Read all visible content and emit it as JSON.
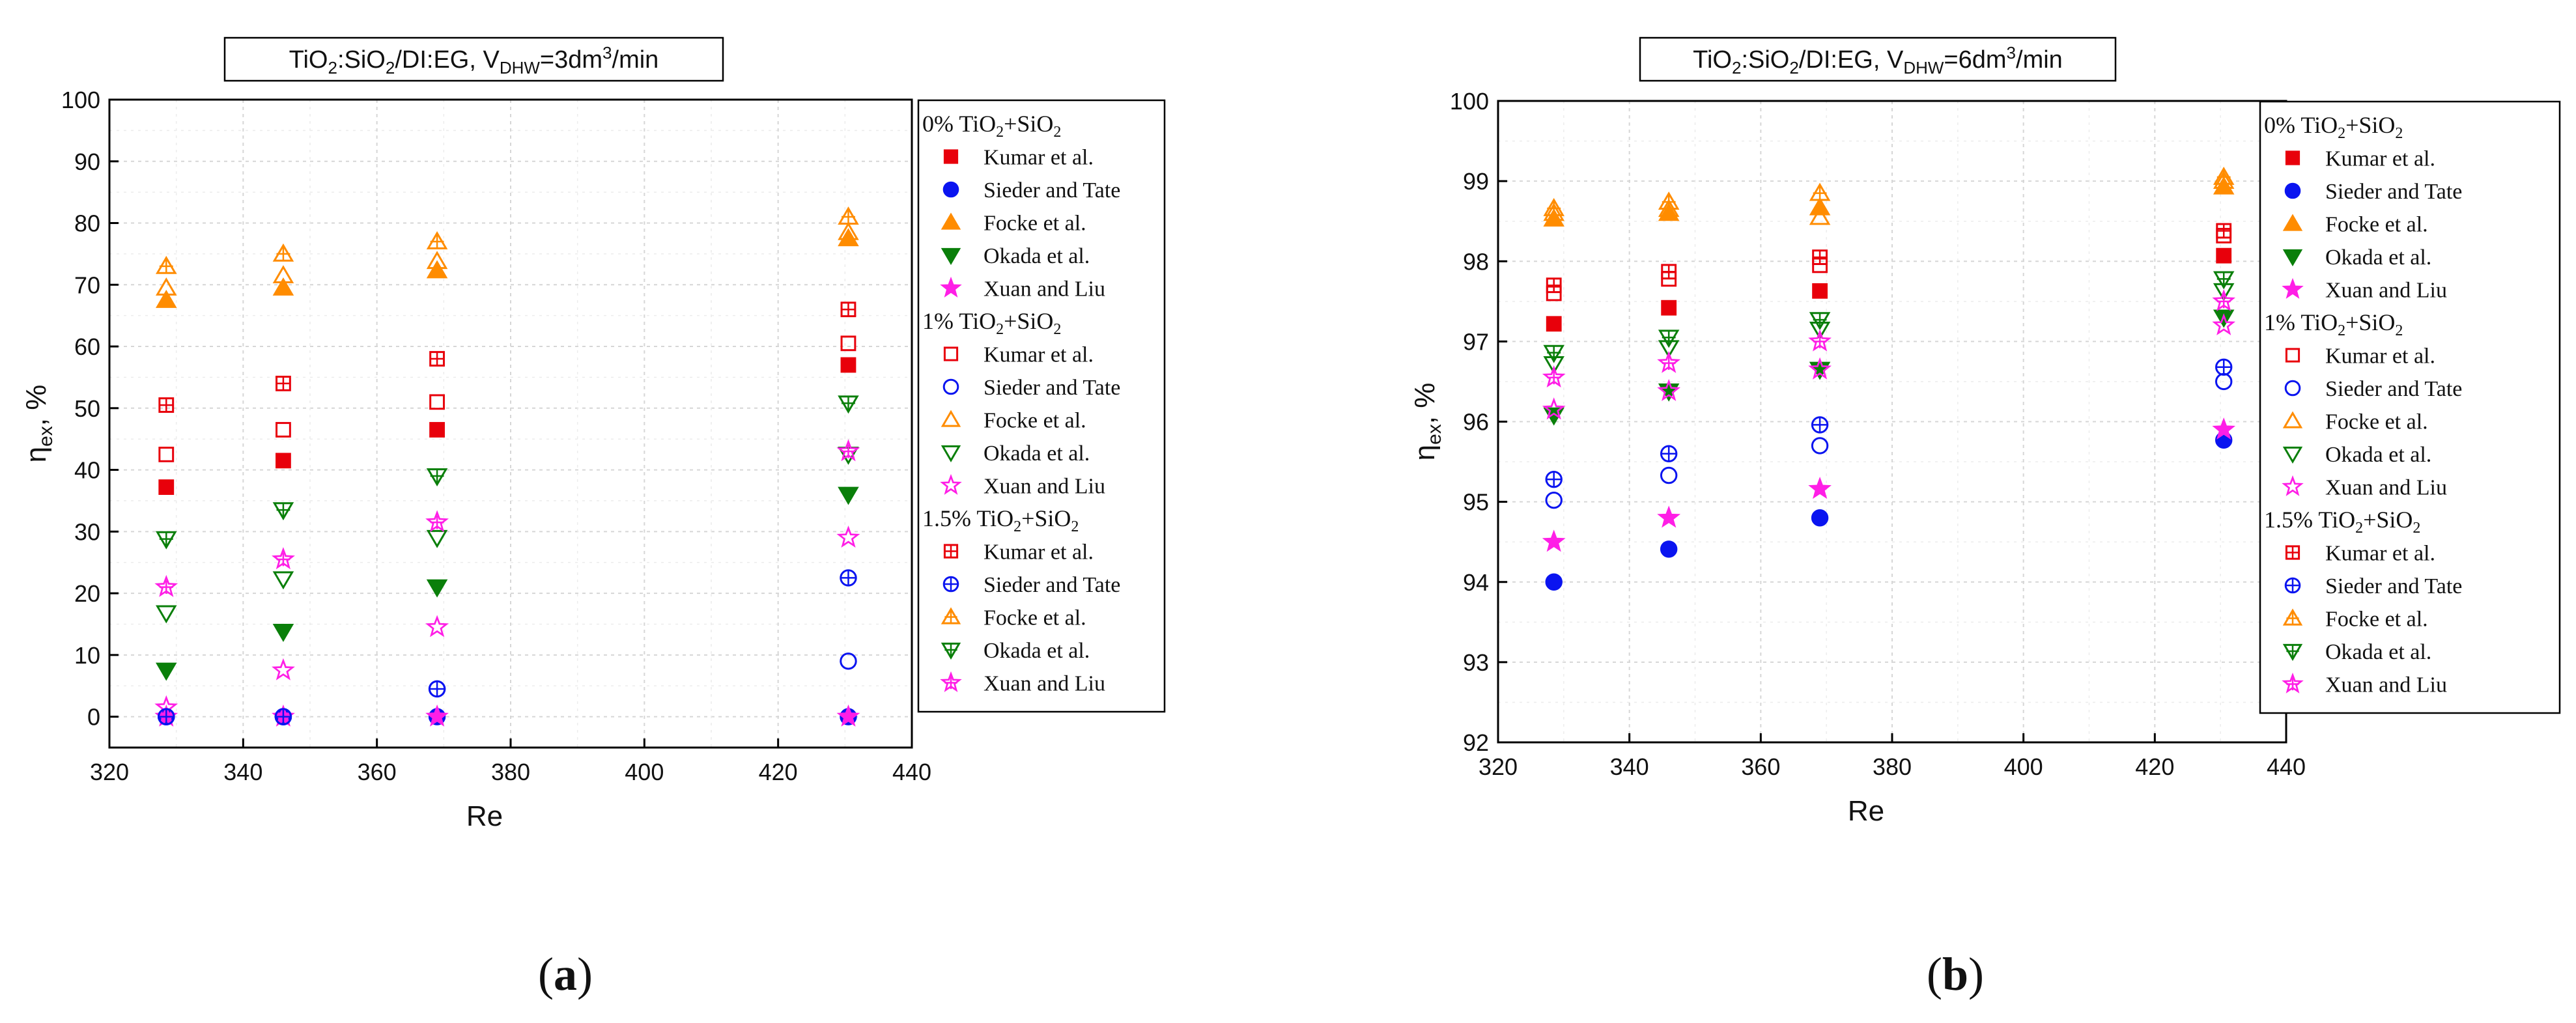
{
  "panels": [
    {
      "id": "a",
      "label_open": "(",
      "label_letter": "a",
      "label_close": ")"
    },
    {
      "id": "b",
      "label_open": "(",
      "label_letter": "b",
      "label_close": ")"
    }
  ],
  "colors": {
    "Kumar": "#e8000b",
    "Sieder": "#0a14f0",
    "Focke": "#ff8c00",
    "Okada": "#0a7f0a",
    "Xuan": "#ff1ee6"
  },
  "chart_data": [
    {
      "type": "scatter",
      "title_prefix": "TiO",
      "title_mid1": ":SiO",
      "title_mid2": "/DI:EG, ",
      "title_v": "V",
      "title_sub": "DHW",
      "title_eq": "=3dm",
      "title_sup": "3",
      "title_end": "/min",
      "xlabel": "Re",
      "ylabel_main": "η",
      "ylabel_sub": "ex",
      "ylabel_end": ", %",
      "xlim": [
        320,
        440
      ],
      "ylim": [
        -5,
        100
      ],
      "xticks": [
        320,
        340,
        360,
        380,
        400,
        420,
        440
      ],
      "yticks": [
        0,
        10,
        20,
        30,
        40,
        50,
        60,
        70,
        80,
        90,
        100
      ],
      "grid": true,
      "legend_position": "right",
      "x": [
        328.5,
        346,
        369,
        430.5
      ],
      "legend_groups": [
        {
          "heading_pre": "0% TiO",
          "heading_mid": "+SiO",
          "fill": "filled",
          "marker": "0%"
        },
        {
          "heading_pre": "1% TiO",
          "heading_mid": "+SiO",
          "fill": "open",
          "marker": "1%"
        },
        {
          "heading_pre": "1.5% TiO",
          "heading_mid": "+SiO",
          "fill": "cross",
          "marker": "1.5%"
        }
      ],
      "series": [
        {
          "group": "0%",
          "name": "Kumar et al.",
          "color_key": "Kumar",
          "shape": "square",
          "fill": "filled",
          "values": [
            37.2,
            41.5,
            46.5,
            57
          ]
        },
        {
          "group": "0%",
          "name": "Sieder and Tate",
          "color_key": "Sieder",
          "shape": "circle",
          "fill": "filled",
          "values": [
            0,
            0,
            0,
            0
          ]
        },
        {
          "group": "0%",
          "name": "Focke et al.",
          "color_key": "Focke",
          "shape": "triangle-up",
          "fill": "filled",
          "values": [
            67.5,
            69.5,
            72.3,
            77.5
          ]
        },
        {
          "group": "0%",
          "name": "Okada et al.",
          "color_key": "Okada",
          "shape": "triangle-down",
          "fill": "filled",
          "values": [
            7.5,
            13.8,
            21,
            36
          ]
        },
        {
          "group": "0%",
          "name": "Xuan and Liu",
          "color_key": "Xuan",
          "shape": "star",
          "fill": "filled",
          "values": [
            0,
            0,
            0,
            0
          ]
        },
        {
          "group": "1%",
          "name": "Kumar et al.",
          "color_key": "Kumar",
          "shape": "square",
          "fill": "open",
          "values": [
            42.5,
            46.5,
            51,
            60.5
          ]
        },
        {
          "group": "1%",
          "name": "Sieder and Tate",
          "color_key": "Sieder",
          "shape": "circle",
          "fill": "open",
          "values": [
            0,
            0,
            4.5,
            9
          ]
        },
        {
          "group": "1%",
          "name": "Focke et al.",
          "color_key": "Focke",
          "shape": "triangle-up",
          "fill": "open",
          "values": [
            69.5,
            71.5,
            73.8,
            78.5
          ]
        },
        {
          "group": "1%",
          "name": "Okada et al.",
          "color_key": "Okada",
          "shape": "triangle-down",
          "fill": "open",
          "values": [
            16.8,
            22.3,
            29,
            42.5
          ]
        },
        {
          "group": "1%",
          "name": "Xuan and Liu",
          "color_key": "Xuan",
          "shape": "star",
          "fill": "open",
          "values": [
            1.5,
            7.5,
            14.5,
            29
          ]
        },
        {
          "group": "1.5%",
          "name": "Kumar et al.",
          "color_key": "Kumar",
          "shape": "square",
          "fill": "cross",
          "values": [
            50.5,
            54,
            58,
            66
          ]
        },
        {
          "group": "1.5%",
          "name": "Sieder and Tate",
          "color_key": "Sieder",
          "shape": "circle",
          "fill": "cross",
          "values": [
            0,
            0,
            4.5,
            22.5
          ]
        },
        {
          "group": "1.5%",
          "name": "Focke et al.",
          "color_key": "Focke",
          "shape": "triangle-up",
          "fill": "cross",
          "values": [
            73,
            75,
            77,
            81
          ]
        },
        {
          "group": "1.5%",
          "name": "Okada et al.",
          "color_key": "Okada",
          "shape": "triangle-down",
          "fill": "cross",
          "values": [
            28.8,
            33.5,
            39,
            50.8
          ]
        },
        {
          "group": "1.5%",
          "name": "Xuan and Liu",
          "color_key": "Xuan",
          "shape": "star",
          "fill": "cross",
          "values": [
            21,
            25.5,
            31.5,
            43
          ]
        }
      ]
    },
    {
      "type": "scatter",
      "title_prefix": "TiO",
      "title_mid1": ":SiO",
      "title_mid2": "/DI:EG, ",
      "title_v": "V",
      "title_sub": "DHW",
      "title_eq": "=6dm",
      "title_sup": "3",
      "title_end": "/min",
      "xlabel": "Re",
      "ylabel_main": "η",
      "ylabel_sub": "ex",
      "ylabel_end": ", %",
      "xlim": [
        320,
        440
      ],
      "ylim": [
        92,
        100
      ],
      "xticks": [
        320,
        340,
        360,
        380,
        400,
        420,
        440
      ],
      "yticks": [
        92,
        93,
        94,
        95,
        96,
        97,
        98,
        99,
        100
      ],
      "grid": true,
      "legend_position": "right",
      "x": [
        328.5,
        346,
        369,
        430.5
      ],
      "legend_groups": [
        {
          "heading_pre": "0% TiO",
          "heading_mid": "+SiO",
          "fill": "filled",
          "marker": "0%"
        },
        {
          "heading_pre": "1% TiO",
          "heading_mid": "+SiO",
          "fill": "open",
          "marker": "1%"
        },
        {
          "heading_pre": "1.5% TiO",
          "heading_mid": "+SiO",
          "fill": "cross",
          "marker": "1.5%"
        }
      ],
      "series": [
        {
          "group": "0%",
          "name": "Kumar et al.",
          "color_key": "Kumar",
          "shape": "square",
          "fill": "filled",
          "values": [
            97.22,
            97.42,
            97.63,
            98.07
          ]
        },
        {
          "group": "0%",
          "name": "Sieder and Tate",
          "color_key": "Sieder",
          "shape": "circle",
          "fill": "filled",
          "values": [
            94.0,
            94.41,
            94.8,
            95.77
          ]
        },
        {
          "group": "0%",
          "name": "Focke et al.",
          "color_key": "Focke",
          "shape": "triangle-up",
          "fill": "filled",
          "values": [
            98.53,
            98.6,
            98.67,
            98.93
          ]
        },
        {
          "group": "0%",
          "name": "Okada et al.",
          "color_key": "Okada",
          "shape": "triangle-down",
          "fill": "filled",
          "values": [
            96.08,
            96.38,
            96.65,
            97.3
          ]
        },
        {
          "group": "0%",
          "name": "Xuan and Liu",
          "color_key": "Xuan",
          "shape": "star",
          "fill": "filled",
          "values": [
            94.5,
            94.8,
            95.16,
            95.9
          ]
        },
        {
          "group": "1%",
          "name": "Kumar et al.",
          "color_key": "Kumar",
          "shape": "square",
          "fill": "open",
          "values": [
            97.6,
            97.78,
            97.95,
            98.32
          ]
        },
        {
          "group": "1%",
          "name": "Sieder and Tate",
          "color_key": "Sieder",
          "shape": "circle",
          "fill": "open",
          "values": [
            95.02,
            95.33,
            95.7,
            96.5
          ]
        },
        {
          "group": "1%",
          "name": "Focke et al.",
          "color_key": "Focke",
          "shape": "triangle-up",
          "fill": "open",
          "values": [
            98.6,
            98.65,
            98.55,
            99.0
          ]
        },
        {
          "group": "1%",
          "name": "Okada et al.",
          "color_key": "Okada",
          "shape": "triangle-down",
          "fill": "open",
          "values": [
            96.72,
            96.92,
            97.15,
            97.63
          ]
        },
        {
          "group": "1%",
          "name": "Xuan and Liu",
          "color_key": "Xuan",
          "shape": "star",
          "fill": "open",
          "values": [
            96.15,
            96.38,
            96.65,
            97.2
          ]
        },
        {
          "group": "1.5%",
          "name": "Kumar et al.",
          "color_key": "Kumar",
          "shape": "square",
          "fill": "cross",
          "values": [
            97.7,
            97.87,
            98.05,
            98.38
          ]
        },
        {
          "group": "1.5%",
          "name": "Sieder and Tate",
          "color_key": "Sieder",
          "shape": "circle",
          "fill": "cross",
          "values": [
            95.28,
            95.6,
            95.96,
            96.68
          ]
        },
        {
          "group": "1.5%",
          "name": "Focke et al.",
          "color_key": "Focke",
          "shape": "triangle-up",
          "fill": "cross",
          "values": [
            98.66,
            98.74,
            98.85,
            99.05
          ]
        },
        {
          "group": "1.5%",
          "name": "Okada et al.",
          "color_key": "Okada",
          "shape": "triangle-down",
          "fill": "cross",
          "values": [
            96.86,
            97.05,
            97.27,
            97.78
          ]
        },
        {
          "group": "1.5%",
          "name": "Xuan and Liu",
          "color_key": "Xuan",
          "shape": "star",
          "fill": "cross",
          "values": [
            96.55,
            96.73,
            97.0,
            97.5
          ]
        }
      ]
    }
  ]
}
